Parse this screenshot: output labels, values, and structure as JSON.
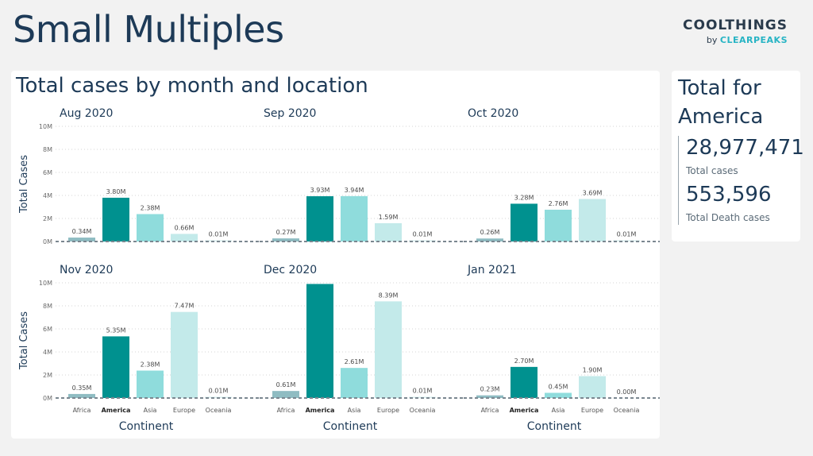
{
  "page": {
    "title": "Small Multiples",
    "logo_line1": "COOLTHINGS",
    "logo_by": "by",
    "logo_brand": "CLEARPEAKS"
  },
  "main": {
    "title": "Total cases by month and location"
  },
  "side": {
    "title": "Total for America",
    "total_cases_value": "28,977,471",
    "total_cases_label": "Total cases",
    "total_deaths_value": "553,596",
    "total_deaths_label": "Total Death cases"
  },
  "colors": {
    "Africa": "#8fbcc2",
    "America": "#00918f",
    "Asia": "#8fdcdc",
    "Europe": "#c3eaea",
    "Oceania": "#d7eeee",
    "baseline": "#7b8790"
  },
  "chart_data": {
    "type": "bar",
    "xlabel": "Continent",
    "ylabel": "Total Cases",
    "ylim": [
      0,
      10
    ],
    "ytick_labels": [
      "0M",
      "2M",
      "4M",
      "6M",
      "8M",
      "10M"
    ],
    "categories": [
      "Africa",
      "America",
      "Asia",
      "Europe",
      "Oceania"
    ],
    "grid": true,
    "panels": [
      {
        "title": "Aug 2020",
        "values": [
          0.34,
          3.8,
          2.38,
          0.66,
          0.01
        ],
        "labels": [
          "0.34M",
          "3.80M",
          "2.38M",
          "0.66M",
          "0.01M"
        ]
      },
      {
        "title": "Sep 2020",
        "values": [
          0.27,
          3.93,
          3.94,
          1.59,
          0.01
        ],
        "labels": [
          "0.27M",
          "3.93M",
          "3.94M",
          "1.59M",
          "0.01M"
        ]
      },
      {
        "title": "Oct 2020",
        "values": [
          0.26,
          3.28,
          2.76,
          3.69,
          0.01
        ],
        "labels": [
          "0.26M",
          "3.28M",
          "2.76M",
          "3.69M",
          "0.01M"
        ]
      },
      {
        "title": "Nov 2020",
        "values": [
          0.35,
          5.35,
          2.38,
          7.47,
          0.01
        ],
        "labels": [
          "0.35M",
          "5.35M",
          "2.38M",
          "7.47M",
          "0.01M"
        ]
      },
      {
        "title": "Dec 2020",
        "values": [
          0.61,
          9.9,
          2.61,
          8.39,
          0.01
        ],
        "labels": [
          "0.61M",
          "",
          "2.61M",
          "8.39M",
          "0.01M"
        ]
      },
      {
        "title": "Jan 2021",
        "values": [
          0.23,
          2.7,
          0.45,
          1.9,
          0.0
        ],
        "labels": [
          "0.23M",
          "2.70M",
          "0.45M",
          "1.90M",
          "0.00M"
        ]
      }
    ]
  }
}
